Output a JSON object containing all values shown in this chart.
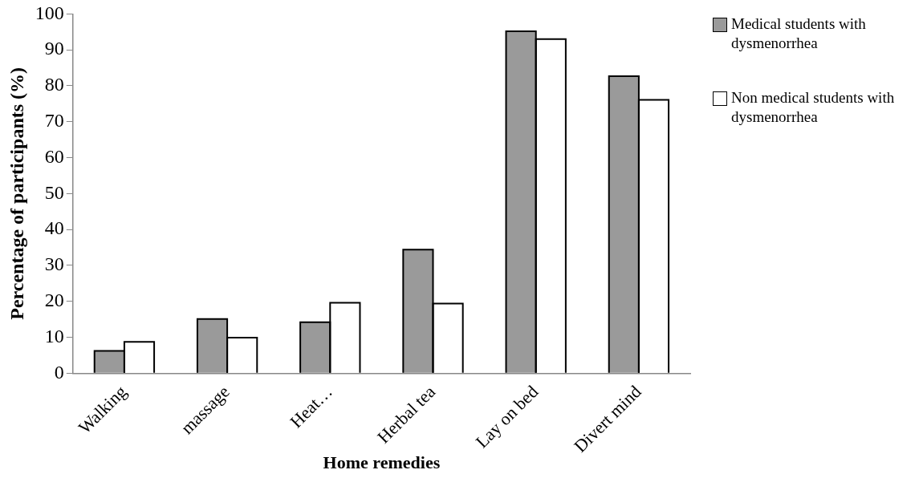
{
  "chart_data": {
    "type": "bar",
    "xlabel": "Home remedies",
    "ylabel": "Percentage of participants (%)",
    "categories": [
      "Walking",
      "massage",
      "Heat…",
      "Herbal tea",
      "Lay on bed",
      "Divert mind"
    ],
    "series": [
      {
        "name": "Medical students with dysmenorrhea",
        "color": "#9a9a9a",
        "values": [
          6.2,
          15.1,
          14.2,
          34.4,
          95.2,
          82.7
        ]
      },
      {
        "name": "Non medical students with dysmenorrhea",
        "color": "#ffffff",
        "values": [
          8.7,
          9.9,
          19.6,
          19.4,
          93.0,
          76.1
        ]
      }
    ],
    "ylim": [
      0,
      100
    ],
    "yticks": [
      0,
      10,
      20,
      30,
      40,
      50,
      60,
      70,
      80,
      90,
      100
    ],
    "grid": false,
    "legend": "right"
  }
}
